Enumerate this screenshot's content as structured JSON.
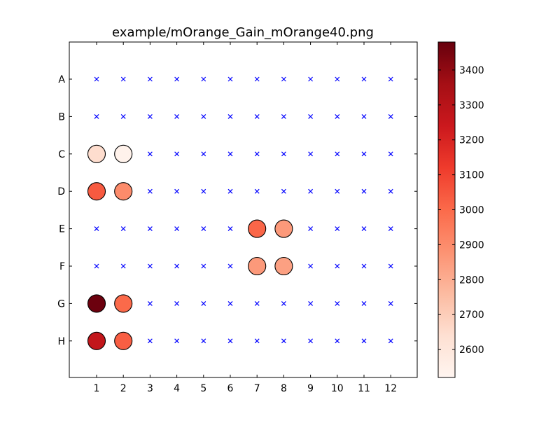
{
  "chart_data": {
    "type": "scatter",
    "title": "example/mOrange_Gain_mOrange40.png",
    "xlabel": "",
    "ylabel": "",
    "columns": [
      "1",
      "2",
      "3",
      "4",
      "5",
      "6",
      "7",
      "8",
      "9",
      "10",
      "11",
      "12"
    ],
    "rows": [
      "A",
      "B",
      "C",
      "D",
      "E",
      "F",
      "G",
      "H"
    ],
    "grid": false,
    "legend": "none",
    "empty_marker": {
      "symbol": "x",
      "color": "#0000ff"
    },
    "wells": [
      {
        "row": "C",
        "col": 1,
        "value": 2650
      },
      {
        "row": "C",
        "col": 2,
        "value": 2540
      },
      {
        "row": "D",
        "col": 1,
        "value": 3040
      },
      {
        "row": "D",
        "col": 2,
        "value": 2900
      },
      {
        "row": "E",
        "col": 7,
        "value": 3010
      },
      {
        "row": "E",
        "col": 8,
        "value": 2860
      },
      {
        "row": "F",
        "col": 7,
        "value": 2860
      },
      {
        "row": "F",
        "col": 8,
        "value": 2840
      },
      {
        "row": "G",
        "col": 1,
        "value": 3470
      },
      {
        "row": "G",
        "col": 2,
        "value": 3000
      },
      {
        "row": "H",
        "col": 1,
        "value": 3270
      },
      {
        "row": "H",
        "col": 2,
        "value": 3030
      }
    ],
    "colorbar": {
      "cmap": "Reds",
      "vmin": 2520,
      "vmax": 3480,
      "ticks": [
        "2600",
        "2700",
        "2800",
        "2900",
        "3000",
        "3100",
        "3200",
        "3300",
        "3400"
      ],
      "colors": [
        "#fff5f0",
        "#fee0d2",
        "#fcbba1",
        "#fc9272",
        "#fb6a4a",
        "#ef3b2c",
        "#cb181d",
        "#a50f15",
        "#67000d"
      ]
    }
  }
}
